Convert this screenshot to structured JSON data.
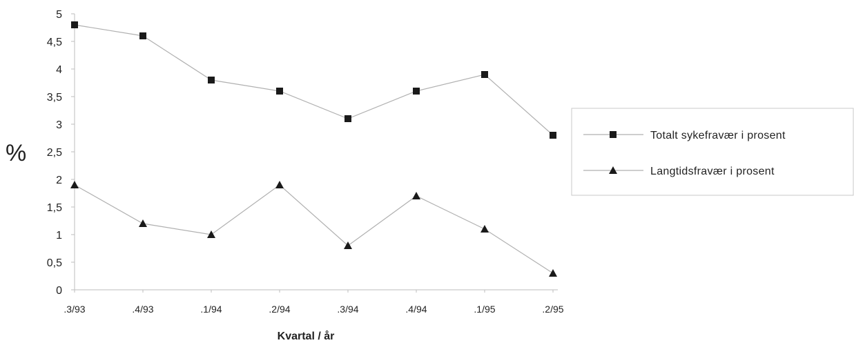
{
  "chart_data": {
    "type": "line",
    "title": "",
    "xlabel": "Kvartal / år",
    "ylabel": "%",
    "categories": [
      ".3/93",
      ".4/93",
      ".1/94",
      ".2/94",
      ".3/94",
      ".4/94",
      ".1/95",
      ".2/95"
    ],
    "y_ticks": [
      "0",
      "0,5",
      "1",
      "1,5",
      "2",
      "2,5",
      "3",
      "3,5",
      "4",
      "4,5",
      "5"
    ],
    "ylim": [
      0,
      5
    ],
    "grid": false,
    "legend_position": "right",
    "series": [
      {
        "name": "Totalt sykefravær i prosent",
        "marker": "square",
        "color": "#1a1a1a",
        "line_color": "#b0b0b0",
        "values": [
          4.8,
          4.6,
          3.8,
          3.6,
          3.1,
          3.6,
          3.9,
          2.8
        ]
      },
      {
        "name": "Langtidsfravær i prosent",
        "marker": "triangle",
        "color": "#1a1a1a",
        "line_color": "#b0b0b0",
        "values": [
          1.9,
          1.2,
          1.0,
          1.9,
          0.8,
          1.7,
          1.1,
          0.3
        ]
      }
    ]
  }
}
